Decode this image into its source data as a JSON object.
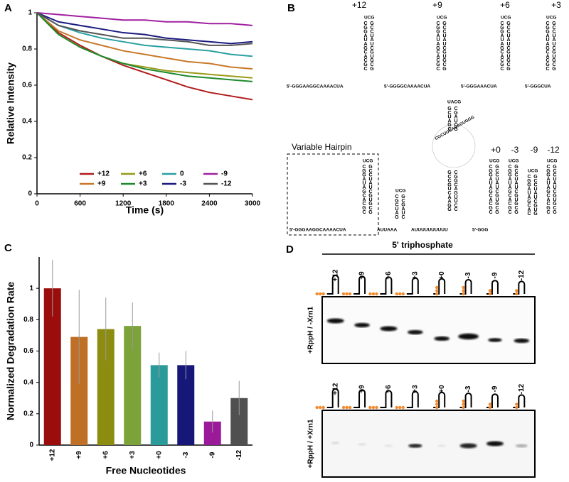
{
  "chart_data": [
    {
      "type": "line",
      "panel_label": "A",
      "xlabel": "Time (s)",
      "ylabel": "Relative Intensity",
      "x": [
        0,
        300,
        600,
        900,
        1200,
        1500,
        1800,
        2100,
        2400,
        2700,
        3000
      ],
      "xlim": [
        0,
        3000
      ],
      "xticks": [
        0,
        600,
        1200,
        1800,
        2400,
        3000
      ],
      "ylim": [
        0,
        1
      ],
      "yticks": [
        0,
        0.2,
        0.4,
        0.6,
        0.8,
        1
      ],
      "series": [
        {
          "name": "+12",
          "color": "#b01c1c",
          "values": [
            1,
            0.89,
            0.82,
            0.76,
            0.71,
            0.67,
            0.63,
            0.59,
            0.56,
            0.54,
            0.52
          ]
        },
        {
          "name": "+9",
          "color": "#c8782a",
          "values": [
            1,
            0.9,
            0.85,
            0.82,
            0.79,
            0.77,
            0.75,
            0.73,
            0.72,
            0.7,
            0.69
          ]
        },
        {
          "name": "+6",
          "color": "#9a9a1a",
          "values": [
            1,
            0.88,
            0.81,
            0.76,
            0.72,
            0.7,
            0.68,
            0.67,
            0.66,
            0.65,
            0.64
          ]
        },
        {
          "name": "+3",
          "color": "#1e8a2e",
          "values": [
            1,
            0.88,
            0.81,
            0.76,
            0.72,
            0.69,
            0.67,
            0.65,
            0.64,
            0.63,
            0.62
          ]
        },
        {
          "name": "0",
          "color": "#2aa0a0",
          "values": [
            1,
            0.93,
            0.89,
            0.86,
            0.84,
            0.82,
            0.81,
            0.8,
            0.79,
            0.77,
            0.76
          ]
        },
        {
          "name": "-3",
          "color": "#1a1a80",
          "values": [
            1,
            0.95,
            0.93,
            0.91,
            0.89,
            0.88,
            0.86,
            0.85,
            0.84,
            0.83,
            0.84
          ]
        },
        {
          "name": "-9",
          "color": "#a020a0",
          "values": [
            1,
            0.99,
            0.98,
            0.97,
            0.96,
            0.96,
            0.95,
            0.95,
            0.94,
            0.94,
            0.93
          ]
        },
        {
          "name": "-12",
          "color": "#555555",
          "values": [
            1,
            0.93,
            0.9,
            0.88,
            0.86,
            0.86,
            0.85,
            0.84,
            0.82,
            0.82,
            0.83
          ]
        }
      ]
    },
    {
      "type": "bar",
      "panel_label": "C",
      "xlabel": "Free Nucleotides",
      "ylabel": "Normalized Degradation Rate",
      "categories": [
        "+12",
        "+9",
        "+6",
        "+3",
        "+0",
        "-3",
        "-9",
        "-12"
      ],
      "values": [
        1.0,
        0.69,
        0.74,
        0.76,
        0.51,
        0.51,
        0.15,
        0.3
      ],
      "errors": [
        0.18,
        0.3,
        0.2,
        0.15,
        0.08,
        0.09,
        0.07,
        0.11
      ],
      "colors": [
        "#9b0d0d",
        "#c07026",
        "#8c8c10",
        "#7ba33a",
        "#2a9a9a",
        "#17177a",
        "#9a1a9a",
        "#505050"
      ],
      "ylim": [
        0,
        1.2
      ],
      "yticks": [
        0,
        0.2,
        0.4,
        0.6,
        0.8,
        1
      ]
    }
  ],
  "panel_b": {
    "label": "B",
    "box_label": "Variable Hairpin",
    "top": [
      {
        "label": "+12",
        "prefix": "5'-GGGAAGGCAAAACUA",
        "loop": "UCG",
        "left": "CGGAUAGCACGC",
        "right": "GCCUAUCGUGCG"
      },
      {
        "label": "+9",
        "prefix": "5'-GGGGCAAAACUA",
        "loop": "UCG",
        "left": "CGGAUAGCACGC",
        "right": "GCCUAUCGUGCG"
      },
      {
        "label": "+6",
        "prefix": "5'-GGGAAACUA",
        "loop": "UCG",
        "left": "CGGAUAGCACGC",
        "right": "GCCUAUCGUGCG"
      },
      {
        "label": "+3",
        "prefix": "5'-GGGCUA",
        "loop": "UCG",
        "left": "CGGAUAGCACGC",
        "right": "GCCUAUCGUGCG"
      }
    ],
    "bottom": {
      "prefix": "5'-GGGAAGGCAAAACUA",
      "hairpin": {
        "loop": "UCG",
        "left": "CGGAUAGCACGC",
        "right": "GCCUAUCGUGCG"
      },
      "linker1": "AUUAAA",
      "small": {
        "loop": "UCG",
        "left": "CGCUAG",
        "right": "GCGAUC"
      },
      "linker2": "AUUUUUUUUUU",
      "big": {
        "loop": "UACG",
        "upper_left": "GCUAGC",
        "upper_right": "CGAUCG",
        "ring": "CGCUUGAGAGUGGG",
        "lower_left": "GCCGUCAAGG",
        "lower_right": "CGGCAGUUCC"
      },
      "short_prefix": "5'-GGG",
      "hairpins": [
        {
          "label": "+0",
          "loop": "UCG",
          "left": "CGGAUAGCACGC",
          "right": "GCCUAUCGUGCG"
        },
        {
          "label": "-3",
          "loop": "UCG",
          "left": "CGGAUAGCACGC",
          "right": "GCCUAUCGUGCG"
        },
        {
          "label": "-9",
          "loop": "UCG",
          "left": "CGGAUAGCAC",
          "right": "GCCUAUCGUG"
        },
        {
          "label": "-12",
          "loop": "UCG",
          "left": "CGGAUAGCACGC",
          "right": "GCCUAUCGUGCG"
        }
      ]
    }
  },
  "panel_d": {
    "label": "D",
    "title": "5' triphosphate",
    "lanes": [
      "+12",
      "+9",
      "+6",
      "+3",
      "+0",
      "-3",
      "-9",
      "-12"
    ],
    "rows": [
      "+RppH / -Xrn1",
      "+RppH / +Xrn1"
    ]
  }
}
